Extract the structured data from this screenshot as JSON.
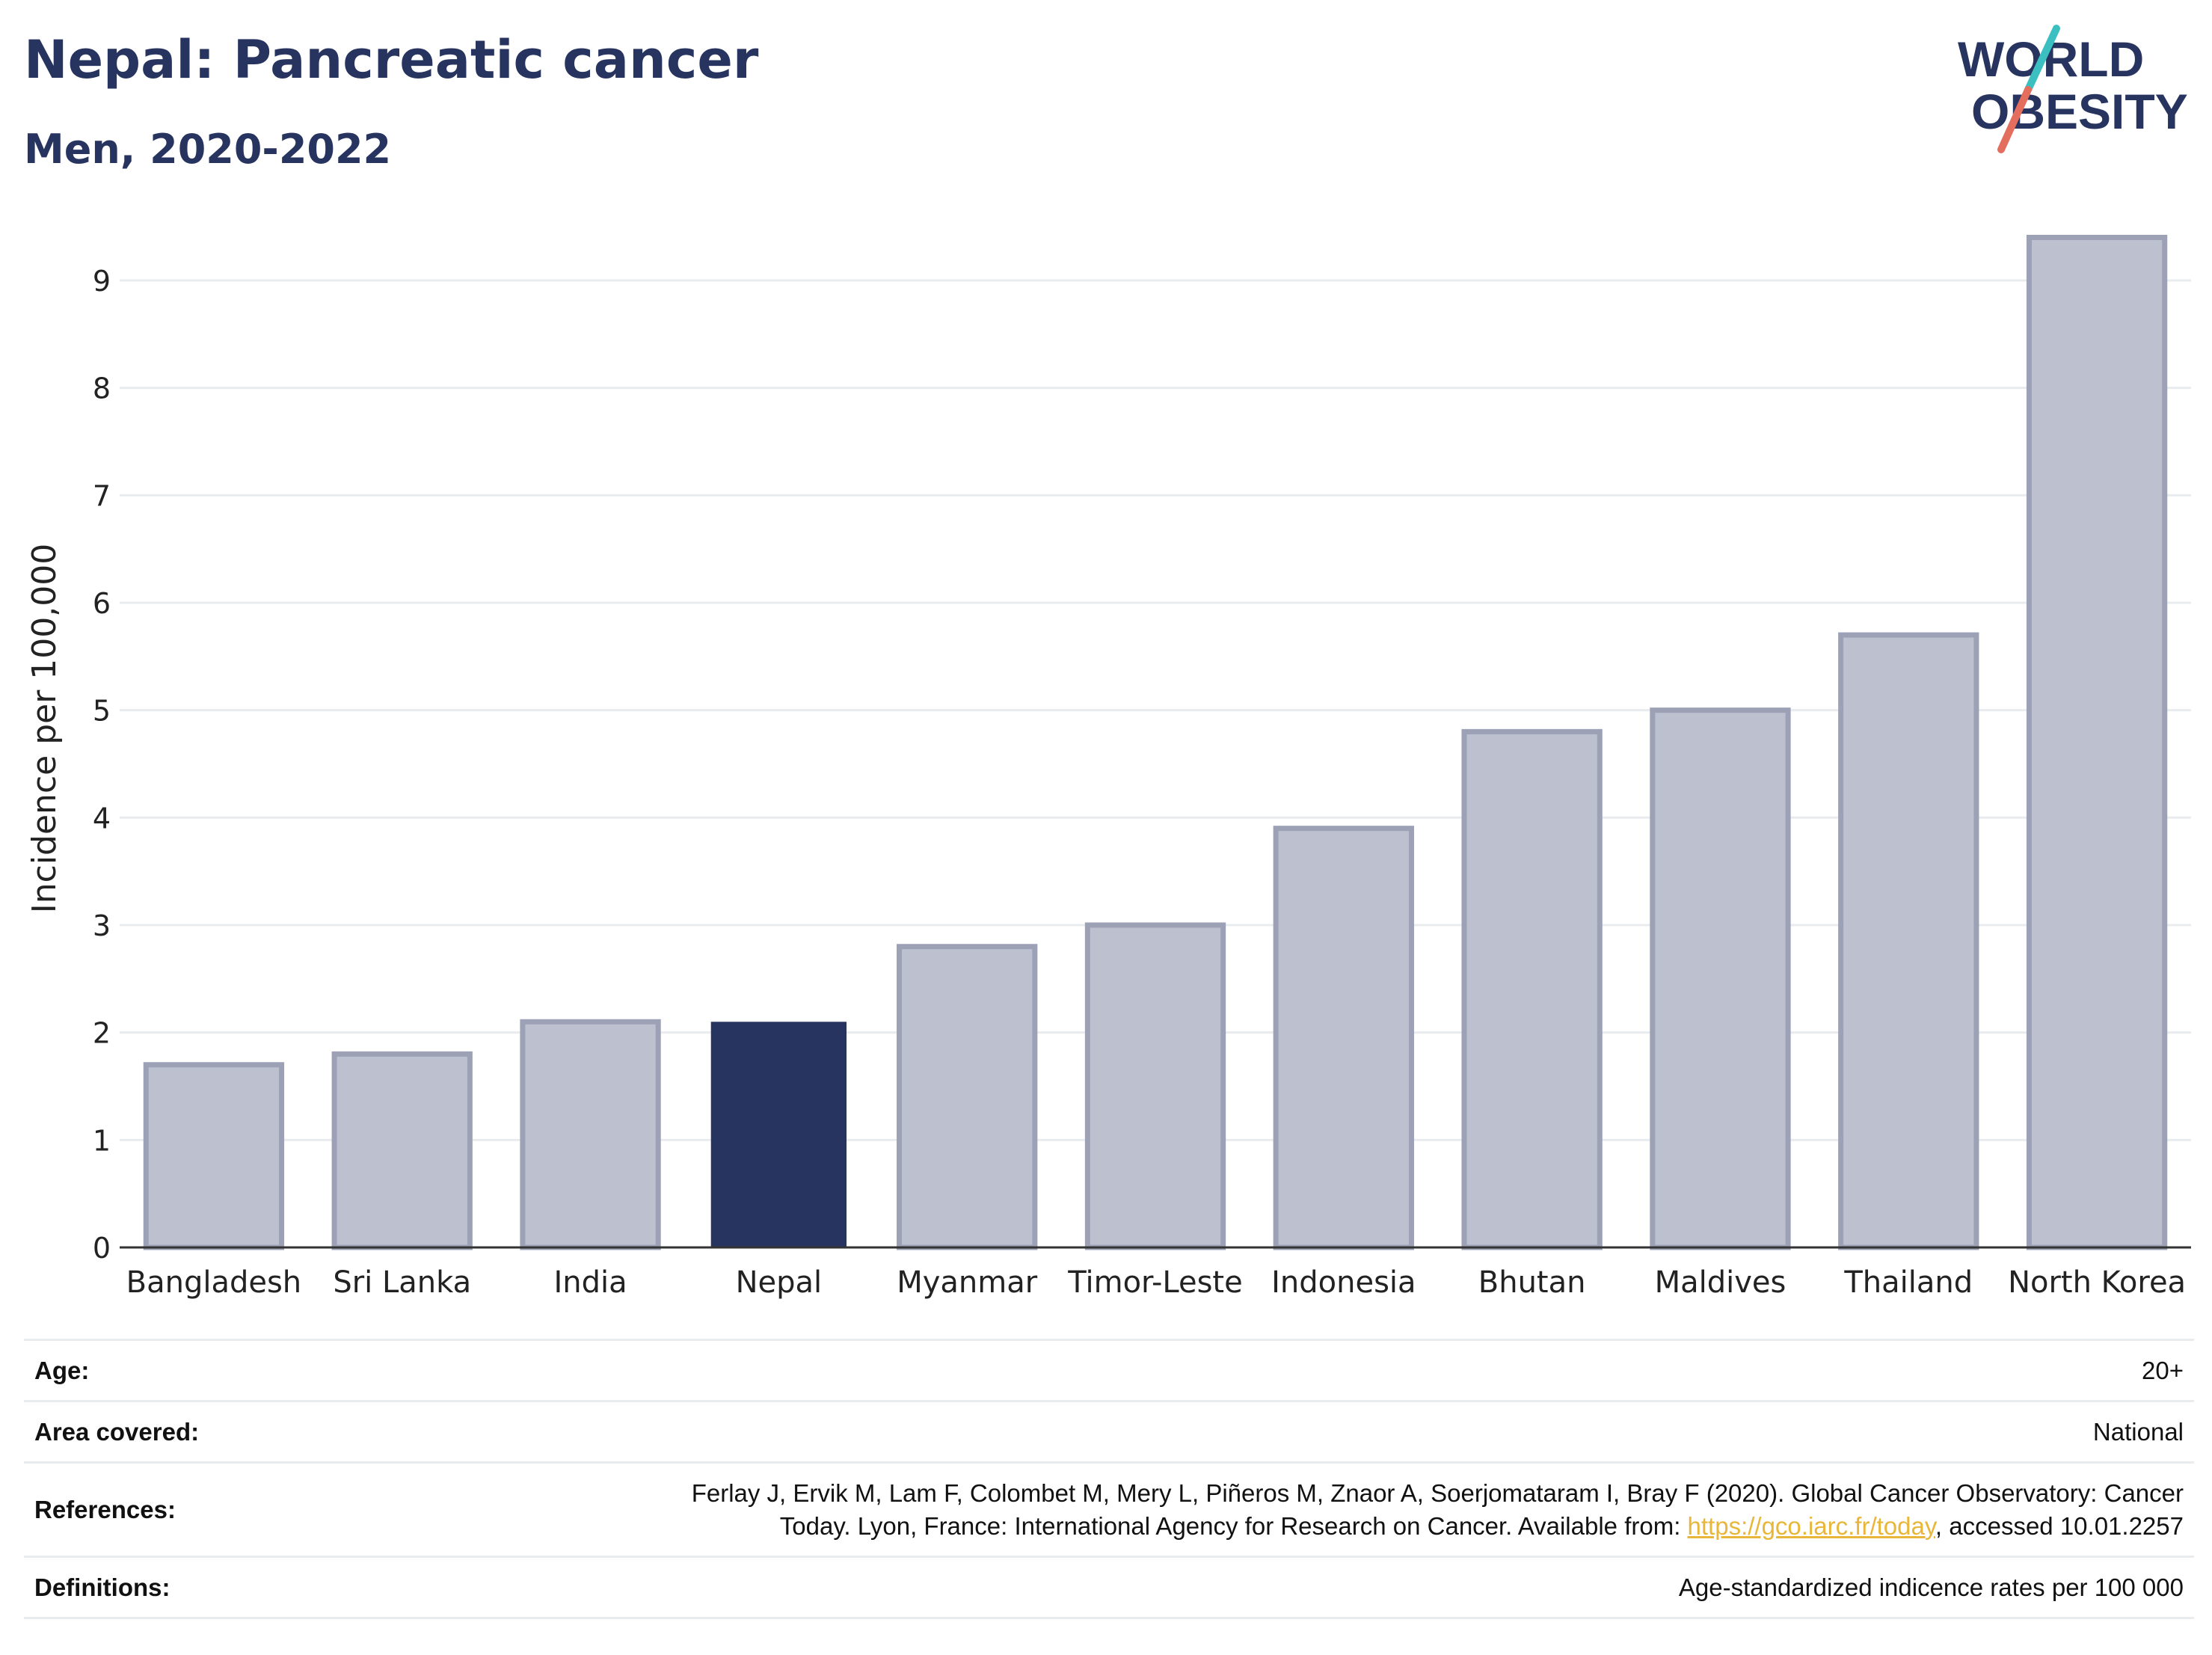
{
  "header": {
    "title": "Nepal: Pancreatic cancer",
    "subtitle": "Men, 2020-2022"
  },
  "logo": {
    "line1": "WORLD",
    "line2": "OBESITY",
    "accent_teal": "#3bbfc1",
    "accent_coral": "#e46e5e",
    "text_color": "#283460"
  },
  "chart_data": {
    "type": "bar",
    "categories": [
      "Bangladesh",
      "Sri Lanka",
      "India",
      "Nepal",
      "Myanmar",
      "Timor-Leste",
      "Indonesia",
      "Bhutan",
      "Maldives",
      "Thailand",
      "North Korea"
    ],
    "values": [
      1.7,
      1.8,
      2.1,
      2.1,
      2.8,
      3.0,
      3.9,
      4.8,
      5.0,
      5.7,
      9.4
    ],
    "highlight": "Nepal",
    "ylabel": "Incidence per 100,000",
    "xlabel": "",
    "ylim": [
      0,
      9.8
    ],
    "yticks": [
      0,
      1,
      2,
      3,
      4,
      5,
      6,
      7,
      8,
      9
    ],
    "grid": true,
    "colors": {
      "bar": "#bdc1cf",
      "bar_border": "#9ca1b6",
      "highlight": "#283460",
      "grid": "#e9ecef",
      "axis": "#333333"
    }
  },
  "meta": {
    "age_label": "Age:",
    "age_value": "20+",
    "area_label": "Area covered:",
    "area_value": "National",
    "references_label": "References:",
    "references_text_1": "Ferlay J, Ervik M, Lam F, Colombet M, Mery L, Piñeros M, Znaor A, Soerjomataram I, Bray F (2020). Global Cancer Observatory: Cancer",
    "references_text_2": "Today. Lyon, France: International Agency for Research on Cancer. Available from: ",
    "references_link": "https://gco.iarc.fr/today",
    "references_text_3": ", accessed 10.01.2257",
    "definitions_label": "Definitions:",
    "definitions_value": "Age-standardized indicence rates per 100 000"
  }
}
